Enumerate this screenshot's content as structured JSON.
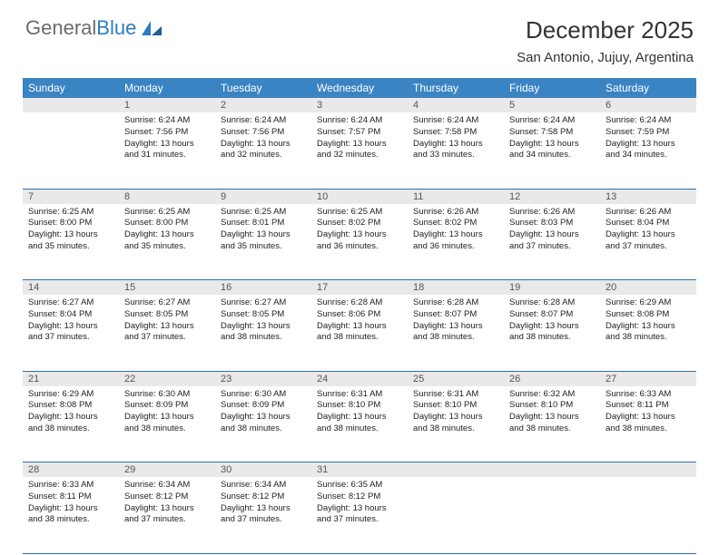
{
  "logo": {
    "text1": "General",
    "text2": "Blue"
  },
  "title": "December 2025",
  "location": "San Antonio, Jujuy, Argentina",
  "colors": {
    "header_bg": "#3b84c4",
    "row_divider": "#2f6fa8",
    "daynum_bg": "#e9e9e9",
    "logo_gray": "#6b6b6b",
    "logo_blue": "#2f7ac0"
  },
  "day_headers": [
    "Sunday",
    "Monday",
    "Tuesday",
    "Wednesday",
    "Thursday",
    "Friday",
    "Saturday"
  ],
  "weeks": [
    [
      null,
      {
        "n": "1",
        "sr": "6:24 AM",
        "ss": "7:56 PM",
        "dl": "13 hours and 31 minutes."
      },
      {
        "n": "2",
        "sr": "6:24 AM",
        "ss": "7:56 PM",
        "dl": "13 hours and 32 minutes."
      },
      {
        "n": "3",
        "sr": "6:24 AM",
        "ss": "7:57 PM",
        "dl": "13 hours and 32 minutes."
      },
      {
        "n": "4",
        "sr": "6:24 AM",
        "ss": "7:58 PM",
        "dl": "13 hours and 33 minutes."
      },
      {
        "n": "5",
        "sr": "6:24 AM",
        "ss": "7:58 PM",
        "dl": "13 hours and 34 minutes."
      },
      {
        "n": "6",
        "sr": "6:24 AM",
        "ss": "7:59 PM",
        "dl": "13 hours and 34 minutes."
      }
    ],
    [
      {
        "n": "7",
        "sr": "6:25 AM",
        "ss": "8:00 PM",
        "dl": "13 hours and 35 minutes."
      },
      {
        "n": "8",
        "sr": "6:25 AM",
        "ss": "8:00 PM",
        "dl": "13 hours and 35 minutes."
      },
      {
        "n": "9",
        "sr": "6:25 AM",
        "ss": "8:01 PM",
        "dl": "13 hours and 35 minutes."
      },
      {
        "n": "10",
        "sr": "6:25 AM",
        "ss": "8:02 PM",
        "dl": "13 hours and 36 minutes."
      },
      {
        "n": "11",
        "sr": "6:26 AM",
        "ss": "8:02 PM",
        "dl": "13 hours and 36 minutes."
      },
      {
        "n": "12",
        "sr": "6:26 AM",
        "ss": "8:03 PM",
        "dl": "13 hours and 37 minutes."
      },
      {
        "n": "13",
        "sr": "6:26 AM",
        "ss": "8:04 PM",
        "dl": "13 hours and 37 minutes."
      }
    ],
    [
      {
        "n": "14",
        "sr": "6:27 AM",
        "ss": "8:04 PM",
        "dl": "13 hours and 37 minutes."
      },
      {
        "n": "15",
        "sr": "6:27 AM",
        "ss": "8:05 PM",
        "dl": "13 hours and 37 minutes."
      },
      {
        "n": "16",
        "sr": "6:27 AM",
        "ss": "8:05 PM",
        "dl": "13 hours and 38 minutes."
      },
      {
        "n": "17",
        "sr": "6:28 AM",
        "ss": "8:06 PM",
        "dl": "13 hours and 38 minutes."
      },
      {
        "n": "18",
        "sr": "6:28 AM",
        "ss": "8:07 PM",
        "dl": "13 hours and 38 minutes."
      },
      {
        "n": "19",
        "sr": "6:28 AM",
        "ss": "8:07 PM",
        "dl": "13 hours and 38 minutes."
      },
      {
        "n": "20",
        "sr": "6:29 AM",
        "ss": "8:08 PM",
        "dl": "13 hours and 38 minutes."
      }
    ],
    [
      {
        "n": "21",
        "sr": "6:29 AM",
        "ss": "8:08 PM",
        "dl": "13 hours and 38 minutes."
      },
      {
        "n": "22",
        "sr": "6:30 AM",
        "ss": "8:09 PM",
        "dl": "13 hours and 38 minutes."
      },
      {
        "n": "23",
        "sr": "6:30 AM",
        "ss": "8:09 PM",
        "dl": "13 hours and 38 minutes."
      },
      {
        "n": "24",
        "sr": "6:31 AM",
        "ss": "8:10 PM",
        "dl": "13 hours and 38 minutes."
      },
      {
        "n": "25",
        "sr": "6:31 AM",
        "ss": "8:10 PM",
        "dl": "13 hours and 38 minutes."
      },
      {
        "n": "26",
        "sr": "6:32 AM",
        "ss": "8:10 PM",
        "dl": "13 hours and 38 minutes."
      },
      {
        "n": "27",
        "sr": "6:33 AM",
        "ss": "8:11 PM",
        "dl": "13 hours and 38 minutes."
      }
    ],
    [
      {
        "n": "28",
        "sr": "6:33 AM",
        "ss": "8:11 PM",
        "dl": "13 hours and 38 minutes."
      },
      {
        "n": "29",
        "sr": "6:34 AM",
        "ss": "8:12 PM",
        "dl": "13 hours and 37 minutes."
      },
      {
        "n": "30",
        "sr": "6:34 AM",
        "ss": "8:12 PM",
        "dl": "13 hours and 37 minutes."
      },
      {
        "n": "31",
        "sr": "6:35 AM",
        "ss": "8:12 PM",
        "dl": "13 hours and 37 minutes."
      },
      null,
      null,
      null
    ]
  ],
  "labels": {
    "sunrise": "Sunrise:",
    "sunset": "Sunset:",
    "daylight": "Daylight:"
  }
}
